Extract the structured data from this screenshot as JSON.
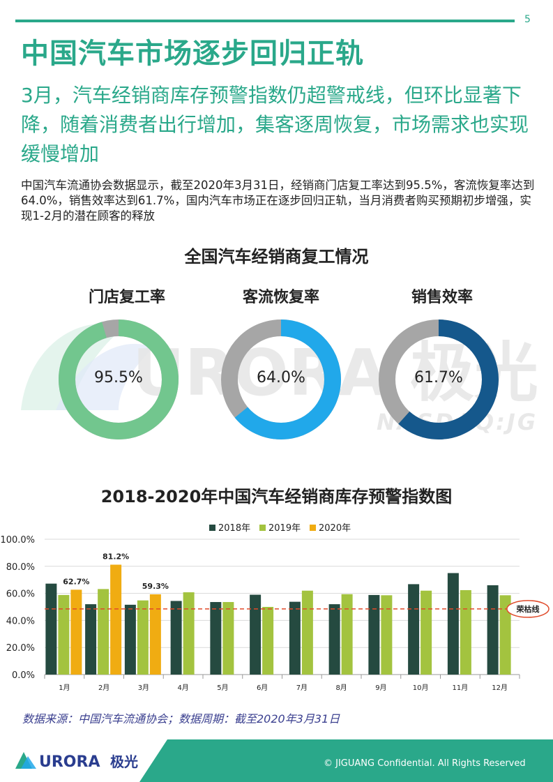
{
  "page_number": "5",
  "title": "中国汽车市场逐步回归正轨",
  "subtitle": "3月，汽车经销商库存预警指数仍超警戒线，但环比显著下降，随着消费者出行增加，集客逐周恢复，市场需求也实现缓慢增加",
  "paragraph": "中国汽车流通协会数据显示，截至2020年3月31日，经销商门店复工率达到95.5%，客流恢复率达到64.0%，销售效率达到61.7%，国内汽车市场正在逐步回归正轨，当月消费者购买预期初步增强，实现1-2月的潜在顾客的释放",
  "donuts_title": "全国汽车经销商复工情况",
  "donuts": [
    {
      "label": "门店复工率",
      "value": 95.5,
      "display": "95.5%",
      "color": "#72c68e"
    },
    {
      "label": "客流恢复率",
      "value": 64.0,
      "display": "64.0%",
      "color": "#21a8ea"
    },
    {
      "label": "销售效率",
      "value": 61.7,
      "display": "61.7%",
      "color": "#15588c"
    }
  ],
  "donut_rest_color": "#a6a6a6",
  "watermark": {
    "brand": "URORA 极光",
    "sub": "NASDAQ:JG"
  },
  "chart_title": "2018-2020年中国汽车经销商库存预警指数图",
  "chart_data": {
    "type": "bar",
    "categories": [
      "1月",
      "2月",
      "3月",
      "4月",
      "5月",
      "6月",
      "7月",
      "8月",
      "9月",
      "10月",
      "11月",
      "12月"
    ],
    "series": [
      {
        "name": "2018年",
        "color": "#254a40",
        "values": [
          67.2,
          52.0,
          51.6,
          54.4,
          53.6,
          59.0,
          53.8,
          52.0,
          58.8,
          66.8,
          75.0,
          66.0
        ]
      },
      {
        "name": "2019年",
        "color": "#a3c33f",
        "values": [
          58.8,
          63.2,
          54.8,
          60.8,
          53.6,
          50.0,
          62.0,
          59.4,
          58.6,
          62.0,
          62.4,
          58.6
        ]
      },
      {
        "name": "2020年",
        "color": "#f0ac12",
        "values": [
          62.7,
          81.2,
          59.3,
          null,
          null,
          null,
          null,
          null,
          null,
          null,
          null,
          null
        ]
      }
    ],
    "data_labels": {
      "2020年": [
        "62.7%",
        "81.2%",
        "59.3%"
      ]
    },
    "yticks": [
      "0.0%",
      "20.0%",
      "40.0%",
      "60.0%",
      "80.0%",
      "100.0%"
    ],
    "ylim": [
      0,
      100
    ],
    "reference_line": {
      "value": 48.5,
      "label": "荣枯线",
      "color": "#e04a2a"
    },
    "legend_position": "top-center",
    "grid": true
  },
  "source": "数据来源：中国汽车流通协会；数据周期：截至2020年3月31日",
  "footer": {
    "brand": "URORA",
    "brand_cn": "极光",
    "copyright": "© JIGUANG Confidential. All Rights Reserved"
  },
  "colors": {
    "accent": "#2aa88a",
    "footer_bar": "#2aa88a"
  }
}
